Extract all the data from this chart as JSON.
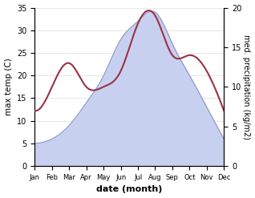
{
  "months": [
    "Jan",
    "Feb",
    "Mar",
    "Apr",
    "May",
    "Jun",
    "Jul",
    "Aug",
    "Sep",
    "Oct",
    "Nov",
    "Dec"
  ],
  "temperature": [
    5,
    6,
    9,
    14,
    20,
    28,
    32,
    34,
    27,
    20,
    13,
    6
  ],
  "precipitation": [
    7,
    10,
    13,
    10,
    10,
    12,
    18,
    19,
    14,
    14,
    12,
    7
  ],
  "temp_fill_color": "#c8d0f0",
  "temp_line_color": "#9098c8",
  "precip_color": "#993344",
  "temp_ylim": [
    0,
    35
  ],
  "precip_ylim": [
    0,
    20
  ],
  "xlabel": "date (month)",
  "ylabel_left": "max temp (C)",
  "ylabel_right": "med. precipitation (kg/m2)",
  "temp_yticks": [
    0,
    5,
    10,
    15,
    20,
    25,
    30,
    35
  ],
  "precip_yticks": [
    0,
    5,
    10,
    15,
    20
  ]
}
